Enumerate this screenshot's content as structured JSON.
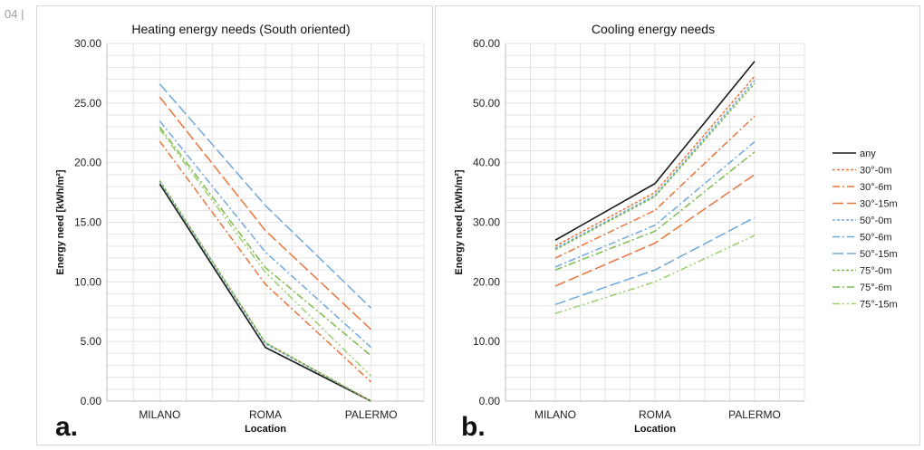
{
  "page_number": "04 |",
  "chart_data": [
    {
      "type": "line",
      "panel": "a.",
      "title": "Heating energy needs (South oriented)",
      "xlabel": "Location",
      "ylabel": "Energy need [kWh/m²]",
      "categories": [
        "MILANO",
        "ROMA",
        "PALERMO"
      ],
      "ylim": [
        0,
        30
      ],
      "yticks": [
        "0.00",
        "5.00",
        "10.00",
        "15.00",
        "20.00",
        "25.00",
        "30.00"
      ],
      "ytick_values": [
        0,
        5,
        10,
        15,
        20,
        25,
        30
      ],
      "grid": true,
      "series": [
        {
          "name": "any",
          "values": [
            18.2,
            4.5,
            0.0
          ]
        },
        {
          "name": "30°-0m",
          "values": [
            18.4,
            4.9,
            0.0
          ]
        },
        {
          "name": "30°-6m",
          "values": [
            21.8,
            9.8,
            1.6
          ]
        },
        {
          "name": "30°-15m",
          "values": [
            25.5,
            14.3,
            6.0
          ]
        },
        {
          "name": "50°-0m",
          "values": [
            18.4,
            4.8,
            0.0
          ]
        },
        {
          "name": "50°-6m",
          "values": [
            23.5,
            12.5,
            4.5
          ]
        },
        {
          "name": "50°-15m",
          "values": [
            26.6,
            16.4,
            7.8
          ]
        },
        {
          "name": "75°-0m",
          "values": [
            18.5,
            4.9,
            0.0
          ]
        },
        {
          "name": "75°-6m",
          "values": [
            23.0,
            11.2,
            3.8
          ]
        },
        {
          "name": "75°-15m",
          "values": [
            22.8,
            10.8,
            2.1
          ]
        }
      ]
    },
    {
      "type": "line",
      "panel": "b.",
      "title": "Cooling energy needs",
      "xlabel": "Location",
      "ylabel": "Energy need [kWh/m²]",
      "categories": [
        "MILANO",
        "ROMA",
        "PALERMO"
      ],
      "ylim": [
        0,
        60
      ],
      "yticks": [
        "0.00",
        "10.00",
        "20.00",
        "30.00",
        "40.00",
        "50.00",
        "60.00"
      ],
      "ytick_values": [
        0,
        10,
        20,
        30,
        40,
        50,
        60
      ],
      "grid": true,
      "legend_position": "right",
      "series": [
        {
          "name": "any",
          "values": [
            27.0,
            36.5,
            57.0
          ]
        },
        {
          "name": "30°-0m",
          "values": [
            26.0,
            35.0,
            54.5
          ]
        },
        {
          "name": "30°-6m",
          "values": [
            24.0,
            32.0,
            47.8
          ]
        },
        {
          "name": "30°-15m",
          "values": [
            19.3,
            26.5,
            38.0
          ]
        },
        {
          "name": "50°-0m",
          "values": [
            25.6,
            34.5,
            53.8
          ]
        },
        {
          "name": "50°-6m",
          "values": [
            22.5,
            29.5,
            43.5
          ]
        },
        {
          "name": "50°-15m",
          "values": [
            16.2,
            22.0,
            30.8
          ]
        },
        {
          "name": "75°-0m",
          "values": [
            25.4,
            34.3,
            53.3
          ]
        },
        {
          "name": "75°-6m",
          "values": [
            22.0,
            28.5,
            41.8
          ]
        },
        {
          "name": "75°-15m",
          "values": [
            14.7,
            20.0,
            27.8
          ]
        }
      ]
    }
  ],
  "series_styles": [
    {
      "color": "#1a1a1a",
      "dash": ""
    },
    {
      "color": "#e8743b",
      "dash": "3,2"
    },
    {
      "color": "#e8743b",
      "dash": "8,3,2,3"
    },
    {
      "color": "#e8743b",
      "dash": "12,4"
    },
    {
      "color": "#6fa8dc",
      "dash": "3,2"
    },
    {
      "color": "#6fa8dc",
      "dash": "8,3,2,3"
    },
    {
      "color": "#6fa8dc",
      "dash": "12,4"
    },
    {
      "color": "#7dbb4b",
      "dash": "3,2"
    },
    {
      "color": "#7dbb4b",
      "dash": "8,3,2,3"
    },
    {
      "color": "#9bcf6b",
      "dash": "8,3,2,3,2,3"
    }
  ]
}
